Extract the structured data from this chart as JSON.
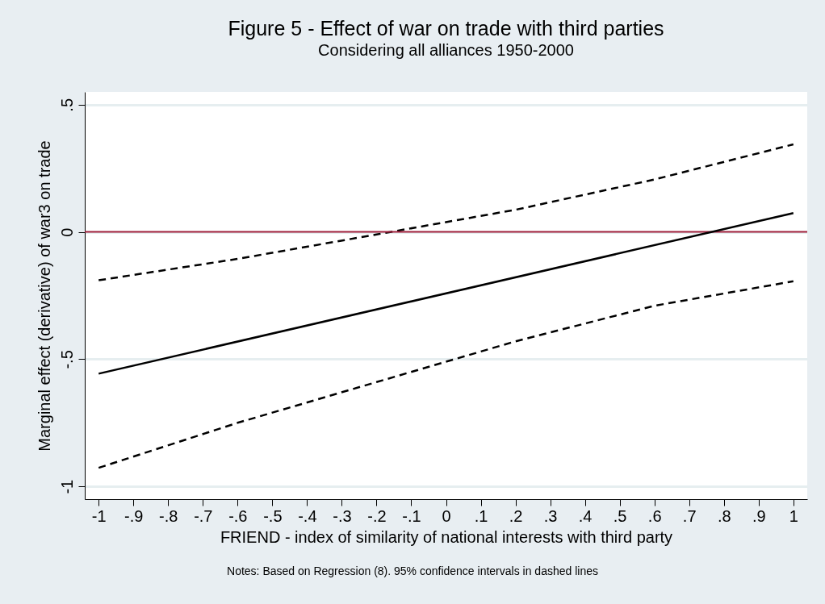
{
  "chart_data": {
    "type": "line",
    "title": "Figure 5 - Effect of war on trade with third parties",
    "subtitle": "Considering all alliances 1950-2000",
    "xlabel": "FRIEND - index of similarity of national interests with third party",
    "ylabel": "Marginal effect (derivative) of war3 on trade",
    "annotations": [
      "Notes: Based on Regression (8). 95% confidence intervals in dashed lines"
    ],
    "series": [
      {
        "color": "#000000",
        "line_style": "dashed",
        "x": [
          -1,
          -0.6,
          -0.2,
          0.2,
          0.6,
          1
        ],
        "values": [
          -0.19,
          -0.106,
          -0.01,
          0.087,
          0.206,
          0.344
        ]
      },
      {
        "color": "#000000",
        "line_style": "solid",
        "x": [
          -1,
          1
        ],
        "values": [
          -0.557,
          0.074
        ]
      },
      {
        "color": "#000000",
        "line_style": "dashed",
        "x": [
          -1,
          -0.6,
          -0.2,
          0.2,
          0.6,
          1
        ],
        "values": [
          -0.927,
          -0.75,
          -0.59,
          -0.43,
          -0.29,
          -0.194
        ]
      }
    ],
    "ref_lines": [
      {
        "axis": "y",
        "value": 0,
        "color": "#a0203c"
      }
    ],
    "xlim": [
      -1.04,
      1.04
    ],
    "ylim": [
      -1.05,
      0.55
    ],
    "xticks": [
      {
        "value": -1,
        "label": "-1"
      },
      {
        "value": -0.9,
        "label": "-.9"
      },
      {
        "value": -0.8,
        "label": "-.8"
      },
      {
        "value": -0.7,
        "label": "-.7"
      },
      {
        "value": -0.6,
        "label": "-.6"
      },
      {
        "value": -0.5,
        "label": "-.5"
      },
      {
        "value": -0.4,
        "label": "-.4"
      },
      {
        "value": -0.3,
        "label": "-.3"
      },
      {
        "value": -0.2,
        "label": "-.2"
      },
      {
        "value": -0.1,
        "label": "-.1"
      },
      {
        "value": 0,
        "label": "0"
      },
      {
        "value": 0.1,
        "label": ".1"
      },
      {
        "value": 0.2,
        "label": ".2"
      },
      {
        "value": 0.3,
        "label": ".3"
      },
      {
        "value": 0.4,
        "label": ".4"
      },
      {
        "value": 0.5,
        "label": ".5"
      },
      {
        "value": 0.6,
        "label": ".6"
      },
      {
        "value": 0.7,
        "label": ".7"
      },
      {
        "value": 0.8,
        "label": ".8"
      },
      {
        "value": 0.9,
        "label": ".9"
      },
      {
        "value": 1,
        "label": "1"
      }
    ],
    "yticks": [
      {
        "value": -1,
        "label": "-1"
      },
      {
        "value": -0.5,
        "label": "-.5"
      },
      {
        "value": 0,
        "label": "0"
      },
      {
        "value": 0.5,
        "label": ".5"
      }
    ],
    "grid": "y",
    "marker": "none"
  }
}
